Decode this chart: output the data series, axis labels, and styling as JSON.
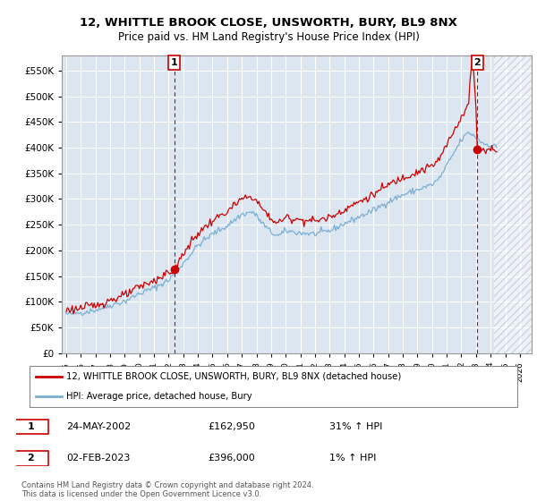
{
  "title": "12, WHITTLE BROOK CLOSE, UNSWORTH, BURY, BL9 8NX",
  "subtitle": "Price paid vs. HM Land Registry's House Price Index (HPI)",
  "ylim": [
    0,
    580000
  ],
  "yticks": [
    0,
    50000,
    100000,
    150000,
    200000,
    250000,
    300000,
    350000,
    400000,
    450000,
    500000,
    550000
  ],
  "xlim_start": 1994.7,
  "xlim_end": 2026.8,
  "plot_bg_color": "#dce6f1",
  "grid_color": "#ffffff",
  "red_line_color": "#cc0000",
  "blue_line_color": "#7bafd4",
  "marker1_date_label": "24-MAY-2002",
  "marker1_price": 162950,
  "marker1_hpi_pct": "31% ↑ HPI",
  "marker2_date_label": "02-FEB-2023",
  "marker2_price": 396000,
  "marker2_hpi_pct": "1% ↑ HPI",
  "legend_label_red": "12, WHITTLE BROOK CLOSE, UNSWORTH, BURY, BL9 8NX (detached house)",
  "legend_label_blue": "HPI: Average price, detached house, Bury",
  "footer_text": "Contains HM Land Registry data © Crown copyright and database right 2024.\nThis data is licensed under the Open Government Licence v3.0.",
  "marker1_x": 2002.38,
  "marker1_y": 162950,
  "marker2_x": 2023.08,
  "marker2_y": 396000,
  "hatch_start": 2024.25
}
